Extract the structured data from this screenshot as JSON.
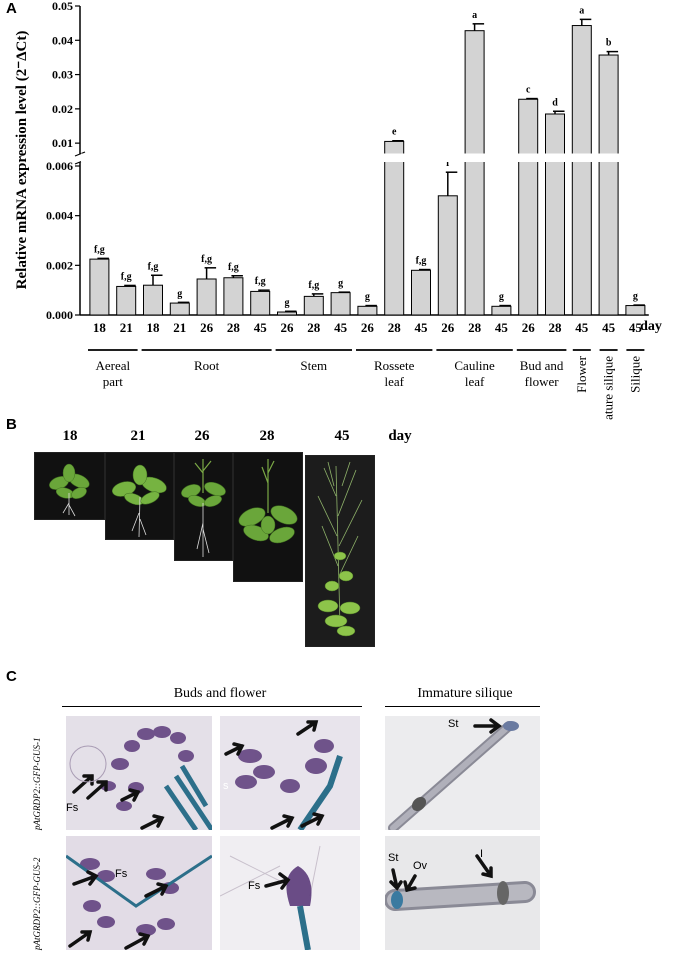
{
  "panel_a": {
    "label": "A",
    "chart_data": {
      "type": "bar",
      "ylabel": "Relative mRNA expression level (2⁻ΔCt)",
      "x_unit": "day",
      "y_ticks_lower": [
        "0.000",
        "0.002",
        "0.004",
        "0.006"
      ],
      "y_ticks_upper": [
        "0.01",
        "0.02",
        "0.03",
        "0.04",
        "0.05"
      ],
      "broken_axis": {
        "lower": [
          0,
          0.006
        ],
        "upper": [
          0.008,
          0.05
        ]
      },
      "bars": [
        {
          "day": "18",
          "value": 0.00225,
          "err": 3e-05,
          "sig": "f,g"
        },
        {
          "day": "21",
          "value": 0.00115,
          "err": 4e-05,
          "sig": "f,g"
        },
        {
          "day": "18",
          "value": 0.0012,
          "err": 0.0004,
          "sig": "f,g"
        },
        {
          "day": "21",
          "value": 0.00048,
          "err": 3e-05,
          "sig": "g"
        },
        {
          "day": "26",
          "value": 0.00145,
          "err": 0.00045,
          "sig": "f,g"
        },
        {
          "day": "28",
          "value": 0.0015,
          "err": 8e-05,
          "sig": "f,g"
        },
        {
          "day": "45",
          "value": 0.00095,
          "err": 5e-05,
          "sig": "f,g"
        },
        {
          "day": "26",
          "value": 0.00012,
          "err": 3e-05,
          "sig": "g"
        },
        {
          "day": "28",
          "value": 0.00075,
          "err": 0.0001,
          "sig": "f,g"
        },
        {
          "day": "45",
          "value": 0.0009,
          "err": 2e-05,
          "sig": "g"
        },
        {
          "day": "26",
          "value": 0.00035,
          "err": 3e-05,
          "sig": "g"
        },
        {
          "day": "28",
          "value": 0.0105,
          "err": 0.0002,
          "sig": "e"
        },
        {
          "day": "45",
          "value": 0.0018,
          "err": 3e-05,
          "sig": "f,g"
        },
        {
          "day": "26",
          "value": 0.0048,
          "err": 0.00095,
          "sig": "f"
        },
        {
          "day": "28",
          "value": 0.0428,
          "err": 0.002,
          "sig": "a"
        },
        {
          "day": "45",
          "value": 0.00035,
          "err": 3e-05,
          "sig": "g"
        },
        {
          "day": "26",
          "value": 0.0228,
          "err": 0.0002,
          "sig": "c"
        },
        {
          "day": "28",
          "value": 0.0185,
          "err": 0.0008,
          "sig": "d"
        },
        {
          "day": "45",
          "value": 0.0443,
          "err": 0.0018,
          "sig": "a"
        },
        {
          "day": "45",
          "value": 0.0357,
          "err": 0.001,
          "sig": "b"
        },
        {
          "day": "45",
          "value": 0.00038,
          "err": 2e-05,
          "sig": "g"
        }
      ],
      "groups": [
        {
          "name": "Aereal part",
          "lines": [
            "Aereal",
            "part"
          ],
          "start": 0,
          "end": 1
        },
        {
          "name": "Root",
          "lines": [
            "Root"
          ],
          "start": 2,
          "end": 6
        },
        {
          "name": "Stem",
          "lines": [
            "Stem"
          ],
          "start": 7,
          "end": 9
        },
        {
          "name": "Rossete leaf",
          "lines": [
            "Rossete",
            "leaf"
          ],
          "start": 10,
          "end": 12
        },
        {
          "name": "Cauline leaf",
          "lines": [
            "Cauline",
            "leaf"
          ],
          "start": 13,
          "end": 15
        },
        {
          "name": "Bud and flower",
          "lines": [
            "Bud and",
            "flower"
          ],
          "start": 16,
          "end": 17
        }
      ],
      "vertical_groups": [
        {
          "name": "Flower",
          "index": 18
        },
        {
          "name": "Immature silique",
          "index": 19
        },
        {
          "name": "Silique",
          "index": 20
        }
      ]
    }
  },
  "panel_b": {
    "label": "B",
    "days": [
      "18",
      "21",
      "26",
      "28",
      "45"
    ],
    "unit": "day"
  },
  "panel_c": {
    "label": "C",
    "headers": {
      "buds": "Buds and flower",
      "silique": "Immature silique"
    },
    "row_labels": [
      "pAtGRDP2::GFP-GUS-1",
      "pAtGRDP2::GFP-GUS-2"
    ],
    "annotations": {
      "fs": "Fs",
      "s": "s",
      "st": "St",
      "ov": "Ov",
      "i": "I"
    }
  },
  "colors": {
    "bar_fill": "#d3d3d3",
    "stain_blue": "#2c6f8a",
    "stain_purple": "#5b3a7a"
  }
}
